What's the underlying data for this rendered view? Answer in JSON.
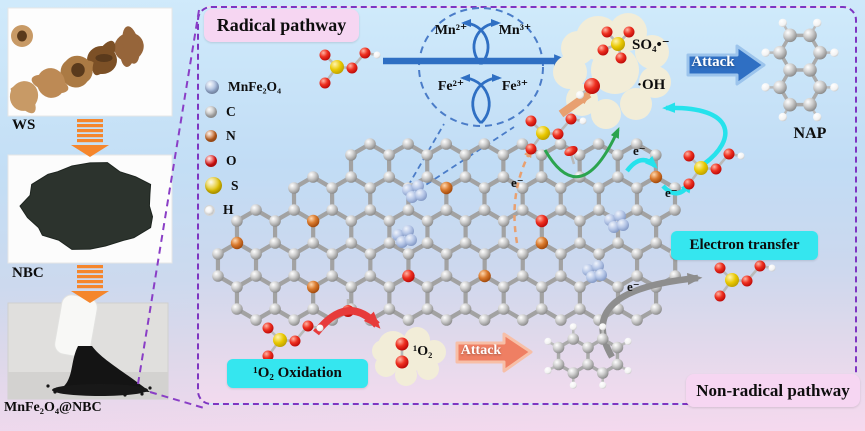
{
  "left_panel": {
    "photos": [
      {
        "name": "walnut-shells",
        "label": "WS"
      },
      {
        "name": "biochar-powder",
        "label": "NBC"
      },
      {
        "name": "composite-material",
        "label": "MnFe₂O₄@NBC"
      }
    ]
  },
  "legend": {
    "items": [
      {
        "type": "mnfe",
        "label": "MnFe₂O₄",
        "color": "#9db3d9"
      },
      {
        "type": "c",
        "label": "C",
        "color": "#b9b9b9"
      },
      {
        "type": "n",
        "label": "N",
        "color": "#c4611f"
      },
      {
        "type": "o",
        "label": "O",
        "color": "#e11212"
      },
      {
        "type": "s",
        "label": "S",
        "color": "#e0c000"
      },
      {
        "type": "h",
        "label": "H",
        "color": "#f5f5f5"
      }
    ]
  },
  "diagram": {
    "radical_label": "Radical pathway",
    "non_radical_label": "Non-radical pathway",
    "electron_transfer_label": "Electron transfer",
    "singlet_oxidation_label": "¹O₂ Oxidation",
    "attack_top": "Attack",
    "attack_bottom": "Attack",
    "nap_label": "NAP",
    "singlet_oxygen": "¹O₂",
    "sulfate_radical": "SO₄•⁻",
    "hydroxyl_radical": "·OH",
    "electron": "e⁻",
    "ions": {
      "mn2": "Mn²⁺",
      "mn3": "Mn³⁺",
      "fe2": "Fe²⁺",
      "fe3": "Fe³⁺"
    }
  },
  "colors": {
    "panel_border": "#7e35c1",
    "label_pink": "#f6d6f2",
    "label_cyan": "#35e6ef",
    "arrow_blue": "#2f6fc3",
    "arrow_salmon": "#ef7f63",
    "arrow_green": "#2ba44e",
    "arrow_cyan": "#25e2ec",
    "arrow_gray": "#8e8e8e",
    "arrow_red": "#e73b3b",
    "arrow_orange": "#e8a070",
    "process_arrow_orange": "#f5862c",
    "cloud": "#f2edd8"
  }
}
